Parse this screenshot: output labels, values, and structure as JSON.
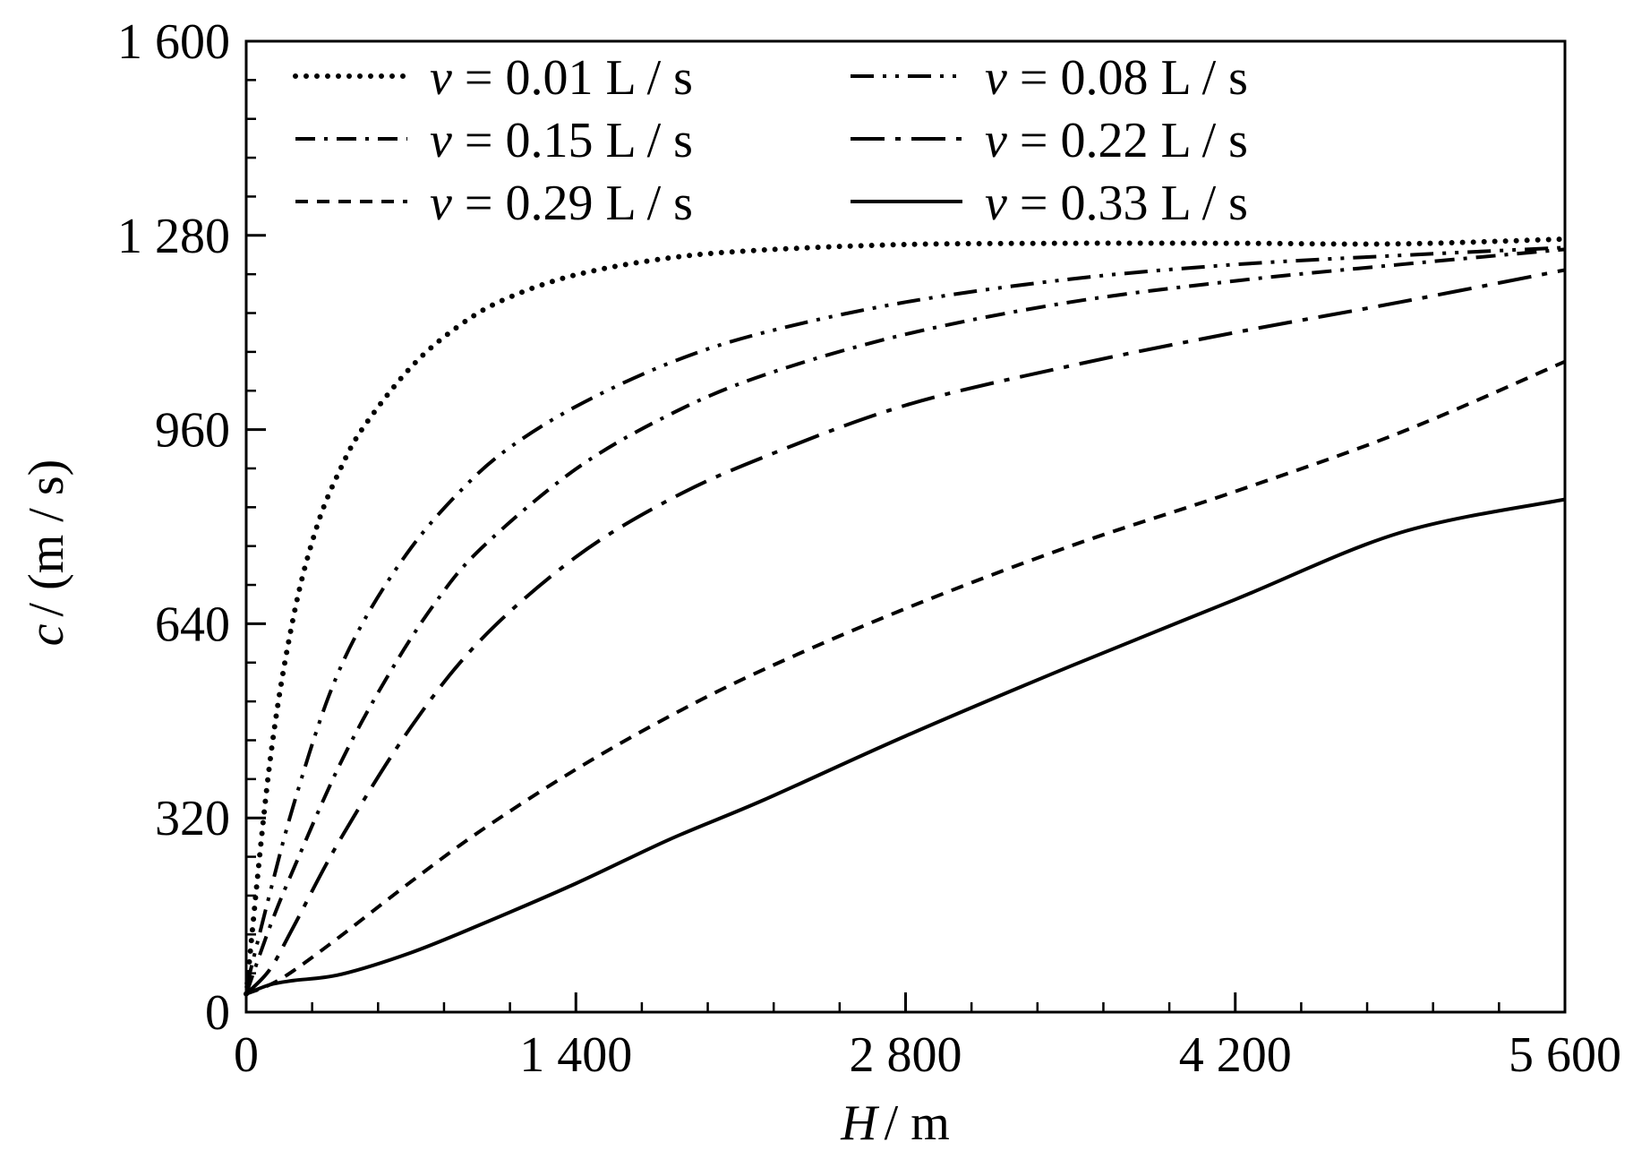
{
  "chart_data": {
    "type": "line",
    "xlabel": {
      "symbol": "H",
      "unit": "/ m"
    },
    "ylabel": {
      "symbol": "c",
      "unit": "/ (m / s)"
    },
    "xlim": [
      0,
      5600
    ],
    "ylim": [
      0,
      1600
    ],
    "x_ticks": [
      0,
      1400,
      2800,
      4200,
      5600
    ],
    "x_tick_labels": [
      "0",
      "1 400",
      "2 800",
      "4 200",
      "5 600"
    ],
    "x_minor_step": 280,
    "y_ticks": [
      0,
      320,
      640,
      960,
      1280,
      1600
    ],
    "y_tick_labels": [
      "0",
      "320",
      "640",
      "960",
      "1 280",
      "1 600"
    ],
    "y_minor_step": 64,
    "grid": false,
    "legend_position": "top-left",
    "series": [
      {
        "label_symbol": "v",
        "label_text": " = 0.01 L / s",
        "style": "dotted",
        "x": [
          0,
          100,
          200,
          300,
          400,
          500,
          700,
          900,
          1100,
          1400,
          1800,
          2200,
          2800,
          3500,
          4200,
          4900,
          5600
        ],
        "y": [
          30,
          410,
          650,
          800,
          895,
          965,
          1063,
          1130,
          1175,
          1215,
          1243,
          1256,
          1265,
          1267,
          1267,
          1266,
          1274
        ]
      },
      {
        "label_symbol": "v",
        "label_text": " = 0.08 L / s",
        "style": "dash-dot-dot",
        "x": [
          0,
          100,
          200,
          350,
          500,
          700,
          900,
          1100,
          1400,
          1800,
          2200,
          2800,
          3500,
          4200,
          4900,
          5600
        ],
        "y": [
          40,
          195,
          340,
          520,
          645,
          765,
          855,
          925,
          998,
          1070,
          1120,
          1170,
          1208,
          1232,
          1247,
          1260
        ]
      },
      {
        "label_symbol": "v",
        "label_text": " = 0.15 L / s",
        "style": "dash-dot",
        "x": [
          0,
          100,
          200,
          400,
          600,
          800,
          1000,
          1400,
          1800,
          2200,
          2800,
          3500,
          4200,
          4900,
          5600
        ],
        "y": [
          30,
          140,
          235,
          410,
          553,
          673,
          765,
          895,
          985,
          1050,
          1117,
          1170,
          1205,
          1232,
          1257
        ]
      },
      {
        "label_symbol": "v",
        "label_text": " = 0.22 L / s",
        "style": "long-dash-dot",
        "x": [
          0,
          100,
          200,
          400,
          700,
          1000,
          1400,
          1800,
          2200,
          2800,
          3500,
          4200,
          4900,
          5600
        ],
        "y": [
          30,
          70,
          140,
          285,
          470,
          615,
          750,
          845,
          915,
          1000,
          1065,
          1120,
          1170,
          1223
        ]
      },
      {
        "label_symbol": "v",
        "label_text": " = 0.29 L / s",
        "style": "dashed",
        "x": [
          0,
          100,
          200,
          400,
          700,
          1000,
          1400,
          1800,
          2200,
          2800,
          3500,
          4200,
          4900,
          5600
        ],
        "y": [
          30,
          45,
          68,
          125,
          215,
          300,
          400,
          488,
          565,
          665,
          768,
          858,
          955,
          1072
        ]
      },
      {
        "label_symbol": "v",
        "label_text": " = 0.33 L / s",
        "style": "solid",
        "x": [
          0,
          100,
          200,
          400,
          700,
          1000,
          1400,
          1800,
          2200,
          2800,
          3500,
          4200,
          4900,
          5600
        ],
        "y": [
          30,
          45,
          52,
          62,
          98,
          145,
          212,
          285,
          350,
          455,
          570,
          680,
          790,
          845
        ]
      }
    ]
  }
}
